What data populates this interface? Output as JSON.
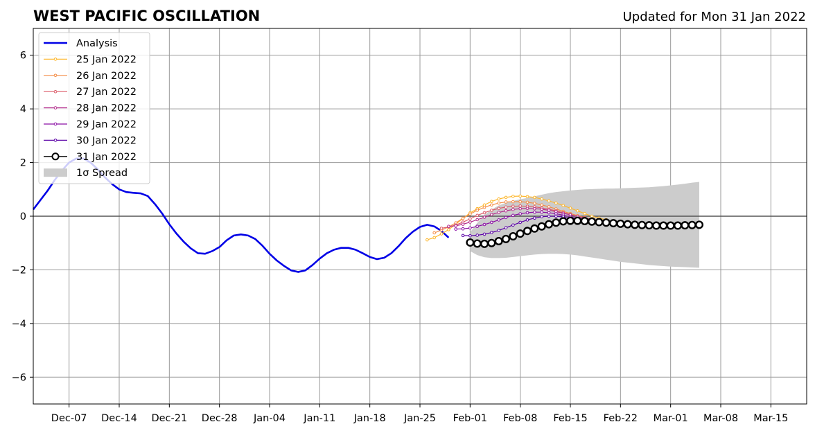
{
  "chart_data": {
    "type": "line",
    "title": "WEST PACIFIC OSCILLATION",
    "subtitle": "Updated for Mon 31 Jan 2022",
    "xlabel": "",
    "ylabel": "",
    "xlim": [
      "2021-12-02",
      "2022-03-20"
    ],
    "ylim": [
      -7,
      7
    ],
    "grid": true,
    "legend_position": "top-left",
    "x_ticks": [
      "Dec-07",
      "Dec-14",
      "Dec-21",
      "Dec-28",
      "Jan-04",
      "Jan-11",
      "Jan-18",
      "Jan-25",
      "Feb-01",
      "Feb-08",
      "Feb-15",
      "Feb-22",
      "Mar-01",
      "Mar-08",
      "Mar-15"
    ],
    "y_ticks": [
      "−6",
      "−4",
      "−2",
      "0",
      "2",
      "4",
      "6"
    ],
    "analysis": {
      "name": "Analysis",
      "color": "#0000e6",
      "start": "2021-12-02",
      "values": [
        0.25,
        0.6,
        0.95,
        1.35,
        1.7,
        2.0,
        2.15,
        2.15,
        2.0,
        1.75,
        1.45,
        1.2,
        1.0,
        0.9,
        0.87,
        0.85,
        0.75,
        0.45,
        0.1,
        -0.3,
        -0.65,
        -0.95,
        -1.2,
        -1.38,
        -1.4,
        -1.3,
        -1.15,
        -0.9,
        -0.72,
        -0.68,
        -0.72,
        -0.85,
        -1.1,
        -1.4,
        -1.65,
        -1.85,
        -2.02,
        -2.08,
        -2.02,
        -1.82,
        -1.58,
        -1.38,
        -1.25,
        -1.18,
        -1.18,
        -1.25,
        -1.38,
        -1.52,
        -1.6,
        -1.55,
        -1.38,
        -1.12,
        -0.82,
        -0.58,
        -0.4,
        -0.32,
        -0.38,
        -0.55,
        -0.8
      ]
    },
    "forecasts": [
      {
        "name": "25 Jan 2022",
        "color": "#fdb72d",
        "start": "2022-01-26",
        "values": [
          -0.88,
          -0.8,
          -0.66,
          -0.5,
          -0.3,
          -0.08,
          0.12,
          0.28,
          0.42,
          0.55,
          0.64,
          0.7,
          0.74,
          0.75,
          0.73,
          0.7,
          0.64,
          0.57,
          0.49,
          0.4,
          0.3,
          0.2,
          0.1,
          0.0,
          -0.07,
          -0.13
        ]
      },
      {
        "name": "26 Jan 2022",
        "color": "#f48c45",
        "start": "2022-01-27",
        "values": [
          -0.62,
          -0.52,
          -0.4,
          -0.25,
          -0.08,
          0.08,
          0.22,
          0.33,
          0.42,
          0.49,
          0.53,
          0.54,
          0.54,
          0.52,
          0.48,
          0.42,
          0.35,
          0.27,
          0.18,
          0.1,
          0.02,
          -0.05,
          -0.11,
          -0.15
        ]
      },
      {
        "name": "27 Jan 2022",
        "color": "#db5c69",
        "start": "2022-01-28",
        "values": [
          -0.45,
          -0.4,
          -0.33,
          -0.22,
          -0.1,
          0.03,
          0.13,
          0.22,
          0.29,
          0.34,
          0.37,
          0.38,
          0.37,
          0.35,
          0.31,
          0.26,
          0.2,
          0.13,
          0.06,
          -0.01,
          -0.07,
          -0.12,
          -0.16
        ]
      },
      {
        "name": "28 Jan 2022",
        "color": "#b42e8d",
        "start": "2022-01-29",
        "values": [
          -0.38,
          -0.36,
          -0.3,
          -0.22,
          -0.13,
          -0.04,
          0.06,
          0.14,
          0.2,
          0.25,
          0.28,
          0.29,
          0.28,
          0.26,
          0.22,
          0.17,
          0.11,
          0.05,
          -0.01,
          -0.07,
          -0.12,
          -0.16
        ]
      },
      {
        "name": "29 Jan 2022",
        "color": "#8a0da4",
        "start": "2022-01-30",
        "values": [
          -0.48,
          -0.47,
          -0.44,
          -0.38,
          -0.31,
          -0.23,
          -0.14,
          -0.05,
          0.03,
          0.09,
          0.13,
          0.15,
          0.15,
          0.13,
          0.09,
          0.04,
          -0.02,
          -0.08,
          -0.13,
          -0.18,
          -0.21
        ]
      },
      {
        "name": "30 Jan 2022",
        "color": "#5a00a6",
        "start": "2022-01-31",
        "values": [
          -0.72,
          -0.73,
          -0.71,
          -0.67,
          -0.61,
          -0.53,
          -0.43,
          -0.33,
          -0.23,
          -0.14,
          -0.07,
          -0.02,
          0.0,
          0.0,
          -0.03,
          -0.07,
          -0.12,
          -0.17,
          -0.21,
          -0.25
        ]
      }
    ],
    "latest": {
      "name": "31 Jan 2022",
      "color": "#000000",
      "start": "2022-02-01",
      "values": [
        -0.98,
        -1.02,
        -1.03,
        -1.0,
        -0.93,
        -0.85,
        -0.75,
        -0.65,
        -0.55,
        -0.46,
        -0.38,
        -0.3,
        -0.24,
        -0.19,
        -0.17,
        -0.17,
        -0.18,
        -0.2,
        -0.22,
        -0.24,
        -0.26,
        -0.28,
        -0.3,
        -0.32,
        -0.33,
        -0.34,
        -0.35,
        -0.35,
        -0.35,
        -0.35,
        -0.34,
        -0.33,
        -0.32
      ]
    },
    "spread": {
      "name": "1σ Spread",
      "color": "#cccccc",
      "start": "2022-02-01",
      "upper": [
        -0.6,
        -0.25,
        0.05,
        0.25,
        0.4,
        0.5,
        0.57,
        0.63,
        0.68,
        0.74,
        0.8,
        0.86,
        0.9,
        0.93,
        0.96,
        0.98,
        1.0,
        1.01,
        1.02,
        1.03,
        1.03,
        1.04,
        1.05,
        1.06,
        1.07,
        1.08,
        1.1,
        1.12,
        1.15,
        1.18,
        1.21,
        1.25,
        1.28
      ],
      "lower": [
        -1.3,
        -1.45,
        -1.53,
        -1.56,
        -1.56,
        -1.55,
        -1.52,
        -1.49,
        -1.46,
        -1.43,
        -1.41,
        -1.4,
        -1.4,
        -1.41,
        -1.43,
        -1.46,
        -1.5,
        -1.54,
        -1.58,
        -1.62,
        -1.66,
        -1.7,
        -1.73,
        -1.76,
        -1.79,
        -1.82,
        -1.84,
        -1.86,
        -1.88,
        -1.89,
        -1.9,
        -1.91,
        -1.92
      ]
    }
  }
}
